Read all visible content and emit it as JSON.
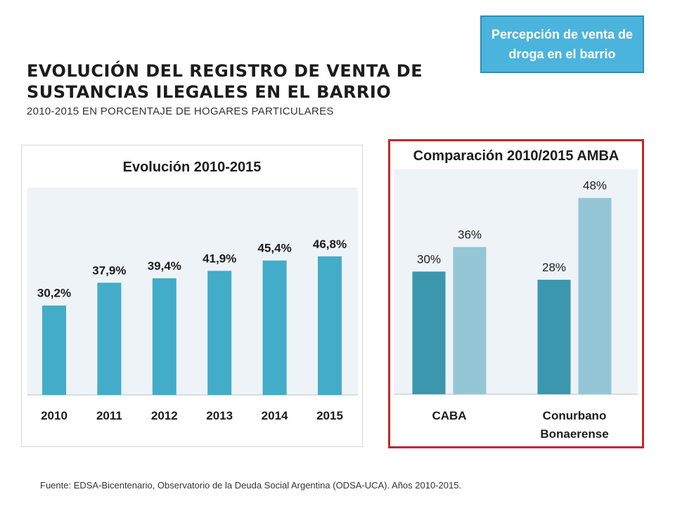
{
  "header": {
    "title": "EVOLUCIÓN DEL REGISTRO DE VENTA DE SUSTANCIAS ILEGALES EN EL BARRIO",
    "subtitle": "2010-2015 EN PORCENTAJE DE HOGARES PARTICULARES",
    "badge": "Percepción de venta de droga en el barrio"
  },
  "footer": {
    "source": "Fuente: EDSA-Bicentenario, Observatorio de la Deuda Social Argentina (ODSA-UCA). Años 2010-2015."
  },
  "colors": {
    "bar_primary": "#43acc8",
    "bar_dark": "#3a97ad",
    "bar_light": "#94c6d6",
    "plot_bg": "#eef3f7",
    "frame_red": "#c0282d",
    "badge_blue": "#4bb4dc"
  },
  "chart_data": [
    {
      "type": "bar",
      "title": "Evolución 2010-2015",
      "categories": [
        "2010",
        "2011",
        "2012",
        "2013",
        "2014",
        "2015"
      ],
      "values": [
        30.2,
        37.9,
        39.4,
        41.9,
        45.4,
        46.8
      ],
      "data_labels": [
        "30,2%",
        "37,9%",
        "39,4%",
        "41,9%",
        "45,4%",
        "46,8%"
      ],
      "ylim": [
        0,
        70
      ],
      "grid": false,
      "legend": "none"
    },
    {
      "type": "bar",
      "title": "Comparación 2010/2015 AMBA",
      "categories": [
        "CABA",
        "Conurbano Bonaerense"
      ],
      "series": [
        {
          "values": [
            30,
            28
          ],
          "data_labels": [
            "30%",
            "28%"
          ]
        },
        {
          "values": [
            36,
            48
          ],
          "data_labels": [
            "36%",
            "48%"
          ]
        }
      ],
      "ylim": [
        0,
        55
      ],
      "grid": false,
      "legend": "none"
    }
  ]
}
